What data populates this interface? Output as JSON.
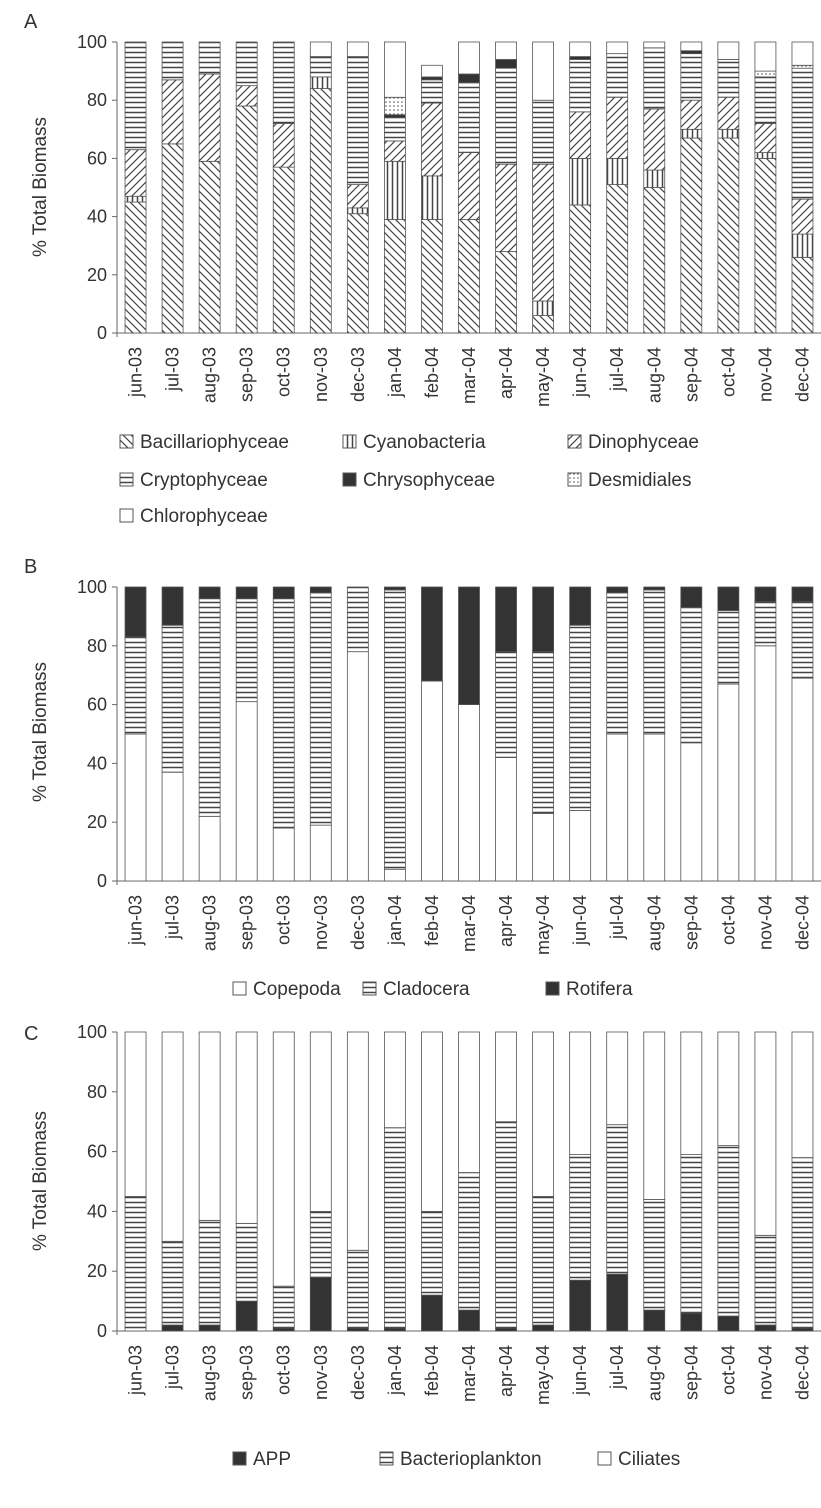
{
  "charts": {
    "A": {
      "panel_label": "A",
      "ylabel": "% Total Biomass",
      "yticks": [
        "0",
        "20",
        "40",
        "60",
        "80",
        "100"
      ],
      "legend_items": [
        "Bacillariophyceae",
        "Cyanobacteria",
        "Dinophyceae",
        "Cryptophyceae",
        "Chrysophyceae",
        "Desmidiales",
        "Chlorophyceae"
      ]
    },
    "B": {
      "panel_label": "B",
      "ylabel": "% Total Biomass",
      "yticks": [
        "0",
        "20",
        "40",
        "60",
        "80",
        "100"
      ],
      "legend_items": [
        "Copepoda",
        "Cladocera",
        "Rotifera"
      ]
    },
    "C": {
      "panel_label": "C",
      "ylabel": "% Total Biomass",
      "yticks": [
        "0",
        "20",
        "40",
        "60",
        "80",
        "100"
      ],
      "legend_items": [
        "APP",
        "Bacterioplankton",
        "Ciliates"
      ]
    }
  },
  "pattern_legend": {
    "Bacillariophyceae": "diag-back",
    "Cyanobacteria": "vertical",
    "Dinophyceae": "diag-fwd",
    "Cryptophyceae": "horizontal",
    "Chrysophyceae": "solid-dark",
    "Desmidiales": "dotted",
    "Chlorophyceae": "white",
    "Copepoda": "white",
    "Cladocera": "horizontal",
    "Rotifera": "solid-dark",
    "APP": "solid-dark",
    "Bacterioplankton": "horizontal",
    "Ciliates": "white"
  },
  "chart_data": [
    {
      "type": "bar",
      "stacked": true,
      "categories": [
        "jun-03",
        "jul-03",
        "aug-03",
        "sep-03",
        "oct-03",
        "nov-03",
        "dec-03",
        "jan-04",
        "feb-04",
        "mar-04",
        "apr-04",
        "may-04",
        "jun-04",
        "jul-04",
        "aug-04",
        "sep-04",
        "oct-04",
        "nov-04",
        "dec-04"
      ],
      "ylim": [
        0,
        100
      ],
      "ylabel": "% Total Biomass",
      "series": [
        {
          "name": "Bacillariophyceae",
          "values": [
            45,
            65,
            59,
            78,
            57,
            84,
            41,
            39,
            39,
            39,
            28,
            6,
            44,
            51,
            50,
            67,
            67,
            60,
            26
          ]
        },
        {
          "name": "Cyanobacteria",
          "values": [
            2,
            0,
            0,
            0,
            0,
            4,
            2,
            20,
            15,
            0,
            0,
            5,
            16,
            9,
            6,
            3,
            3,
            2,
            8
          ]
        },
        {
          "name": "Dinophyceae",
          "values": [
            16,
            22,
            30,
            7,
            15,
            0,
            8,
            7,
            25,
            23,
            30,
            47,
            16,
            21,
            21,
            10,
            11,
            10,
            12
          ]
        },
        {
          "name": "Cryptophyceae",
          "values": [
            37,
            13,
            11,
            15,
            28,
            7,
            44,
            8,
            8,
            24,
            33,
            22,
            18,
            15,
            21,
            16,
            13,
            16,
            45
          ]
        },
        {
          "name": "Chrysophyceae",
          "values": [
            0,
            0,
            0,
            0,
            0,
            0,
            0,
            1,
            1,
            3,
            3,
            0,
            1,
            0,
            0,
            1,
            0,
            0,
            0
          ]
        },
        {
          "name": "Desmidiales",
          "values": [
            0,
            0,
            0,
            0,
            0,
            0,
            0,
            6,
            0,
            0,
            0,
            0,
            0,
            0,
            0,
            0,
            0,
            2,
            1
          ]
        },
        {
          "name": "Chlorophyceae",
          "values": [
            0,
            0,
            0,
            0,
            0,
            5,
            5,
            19,
            4,
            11,
            6,
            20,
            5,
            4,
            2,
            3,
            6,
            10,
            8
          ]
        }
      ]
    },
    {
      "type": "bar",
      "stacked": true,
      "categories": [
        "jun-03",
        "jul-03",
        "aug-03",
        "sep-03",
        "oct-03",
        "nov-03",
        "dec-03",
        "jan-04",
        "feb-04",
        "mar-04",
        "apr-04",
        "may-04",
        "jun-04",
        "jul-04",
        "aug-04",
        "sep-04",
        "oct-04",
        "nov-04",
        "dec-04"
      ],
      "ylim": [
        0,
        100
      ],
      "ylabel": "% Total Biomass",
      "series": [
        {
          "name": "Copepoda",
          "values": [
            50,
            37,
            22,
            61,
            18,
            19,
            78,
            4,
            68,
            60,
            42,
            23,
            24,
            50,
            50,
            47,
            67,
            80,
            69
          ]
        },
        {
          "name": "Cladocera",
          "values": [
            33,
            50,
            74,
            35,
            78,
            79,
            22,
            95,
            0,
            0,
            36,
            55,
            63,
            48,
            49,
            46,
            25,
            15,
            26
          ]
        },
        {
          "name": "Rotifera",
          "values": [
            17,
            13,
            4,
            4,
            4,
            2,
            0,
            1,
            32,
            40,
            22,
            22,
            13,
            2,
            1,
            7,
            8,
            5,
            5
          ]
        }
      ]
    },
    {
      "type": "bar",
      "stacked": true,
      "categories": [
        "jun-03",
        "jul-03",
        "aug-03",
        "sep-03",
        "oct-03",
        "nov-03",
        "dec-03",
        "jan-04",
        "feb-04",
        "mar-04",
        "apr-04",
        "may-04",
        "jun-04",
        "jul-04",
        "aug-04",
        "sep-04",
        "oct-04",
        "nov-04",
        "dec-04"
      ],
      "ylim": [
        0,
        100
      ],
      "ylabel": "% Total Biomass",
      "series": [
        {
          "name": "APP",
          "values": [
            0,
            2,
            2,
            10,
            1,
            18,
            1,
            1,
            12,
            7,
            1,
            2,
            17,
            19,
            7,
            6,
            5,
            2,
            1
          ]
        },
        {
          "name": "Bacterioplankton",
          "values": [
            45,
            28,
            35,
            26,
            14,
            22,
            26,
            67,
            28,
            46,
            69,
            43,
            42,
            50,
            37,
            53,
            57,
            30,
            57
          ]
        },
        {
          "name": "Ciliates",
          "values": [
            55,
            70,
            63,
            64,
            85,
            60,
            73,
            32,
            60,
            47,
            30,
            55,
            41,
            31,
            56,
            41,
            38,
            68,
            42
          ]
        }
      ]
    }
  ]
}
